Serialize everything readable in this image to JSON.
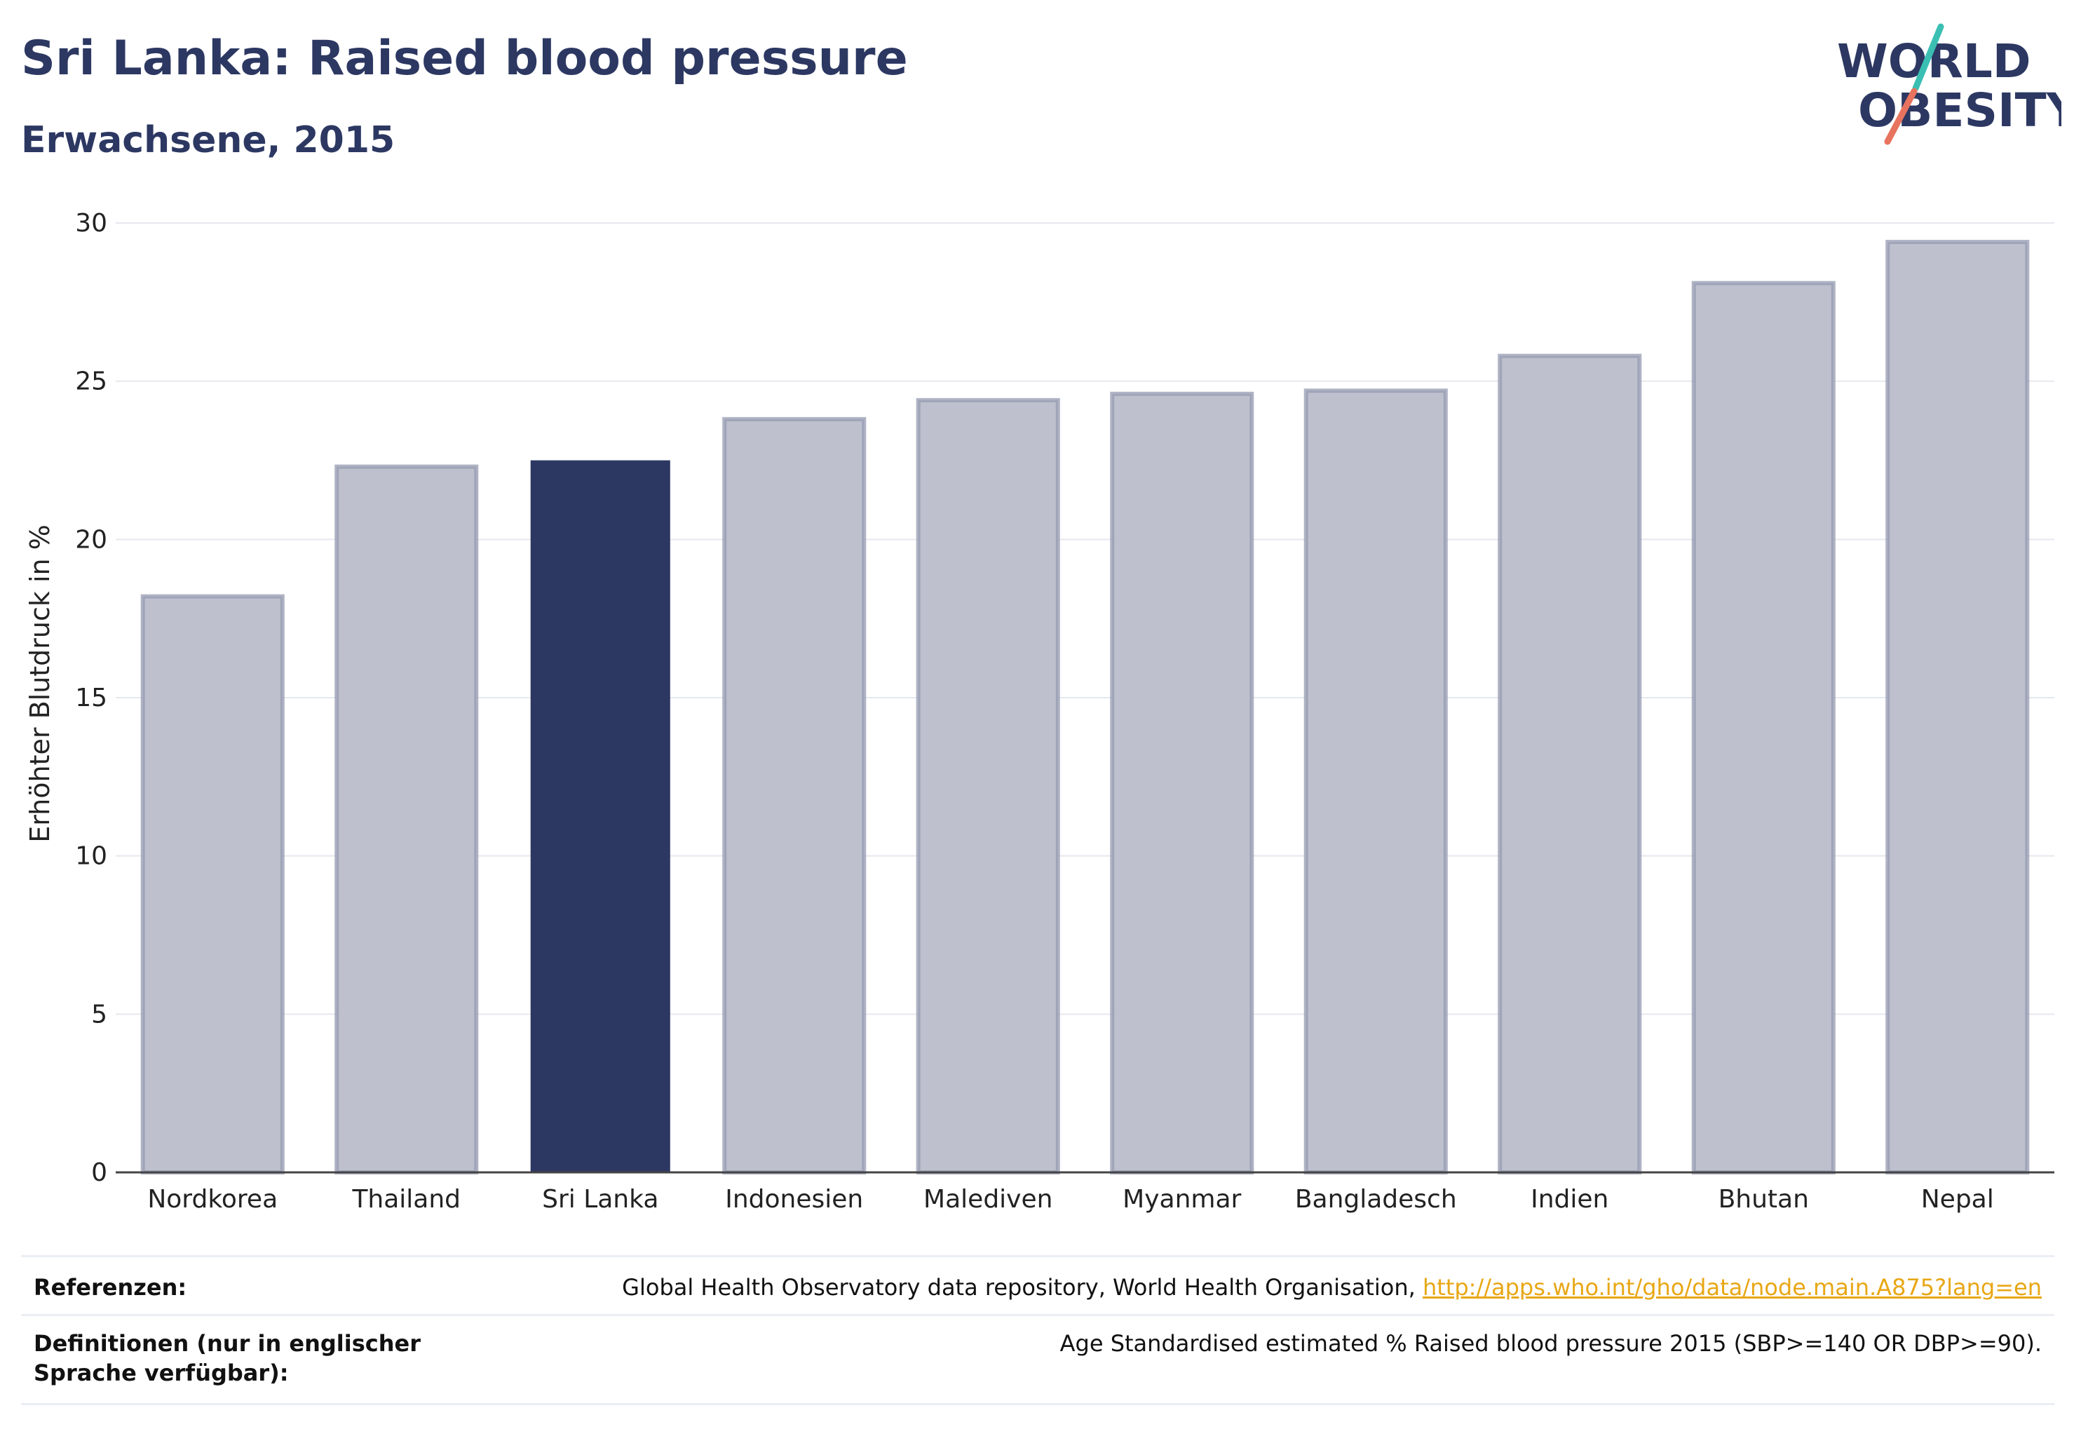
{
  "header": {
    "title": "Sri Lanka: Raised blood pressure",
    "subtitle": "Erwachsene, 2015"
  },
  "logo": {
    "line1": "WORLD",
    "line2": "OBESITY",
    "text_color": "#2c3862",
    "slash_colors": [
      "#3bbfb3",
      "#e8735e"
    ]
  },
  "chart_data": {
    "type": "bar",
    "categories": [
      "Nordkorea",
      "Thailand",
      "Sri Lanka",
      "Indonesien",
      "Malediven",
      "Myanmar",
      "Bangladesch",
      "Indien",
      "Bhutan",
      "Nepal"
    ],
    "values": [
      18.2,
      22.3,
      22.5,
      23.8,
      24.4,
      24.6,
      24.7,
      25.8,
      28.1,
      29.4
    ],
    "highlight": "Sri Lanka",
    "ylabel": "Erhöhter Blutdruck in %",
    "xlabel": "",
    "ylim": [
      0,
      30
    ],
    "yticks": [
      0,
      5,
      10,
      15,
      20,
      25,
      30
    ],
    "grid": true,
    "colors": {
      "highlight": "#2c3862",
      "default_fill": "#bec1cd",
      "default_border": "#9499b0",
      "grid": "#e6e8ef",
      "axis": "#444444"
    }
  },
  "footer": {
    "references_label": "Referenzen:",
    "references_text": "Global Health Observatory data repository, World Health Organisation, ",
    "references_link": "http://apps.who.int/gho/data/node.main.A875?lang=en",
    "definitions_label": "Definitionen (nur in englischer Sprache verfügbar):",
    "definitions_text": "Age Standardised estimated % Raised blood pressure 2015 (SBP>=140 OR DBP>=90)."
  }
}
